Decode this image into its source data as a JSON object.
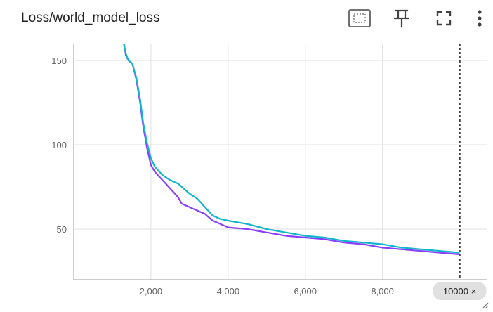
{
  "card": {
    "title": "Loss/world_model_loss"
  },
  "toolbar": {
    "icons": [
      "fit-domain-icon",
      "pin-icon",
      "fullscreen-icon",
      "more-vert-icon"
    ]
  },
  "step_chip": {
    "label": "10000 ×"
  },
  "chart_data": {
    "type": "line",
    "title": "Loss/world_model_loss",
    "xlim": [
      0,
      10700
    ],
    "ylim": [
      20,
      160
    ],
    "xticks": [
      2000,
      4000,
      6000,
      8000
    ],
    "xtick_labels": [
      "2,000",
      "4,000",
      "6,000",
      "8,000"
    ],
    "yticks": [
      50,
      100,
      150
    ],
    "ytick_labels": [
      "50",
      "100",
      "150"
    ],
    "grid": true,
    "step_marker": 10000,
    "series": [
      {
        "color": "#8a3ffc",
        "x": [
          1300,
          1350,
          1420,
          1520,
          1620,
          1720,
          1800,
          1900,
          2000,
          2100,
          2300,
          2500,
          2700,
          2800,
          3000,
          3200,
          3400,
          3600,
          3800,
          4000,
          4500,
          5000,
          5500,
          6000,
          6500,
          7000,
          7500,
          8000,
          8500,
          9000,
          9500,
          10000
        ],
        "y": [
          160,
          153,
          150,
          148,
          139,
          125,
          111,
          98,
          88,
          84,
          79,
          74,
          69,
          65,
          63,
          61,
          59,
          55,
          53,
          51,
          50,
          48,
          46,
          45,
          44,
          42,
          41,
          39,
          38,
          37,
          36,
          35
        ]
      },
      {
        "color": "#12b5cb",
        "x": [
          1300,
          1350,
          1420,
          1520,
          1620,
          1720,
          1800,
          1900,
          2000,
          2100,
          2300,
          2500,
          2700,
          2800,
          3000,
          3200,
          3400,
          3600,
          3800,
          4000,
          4500,
          5000,
          5500,
          6000,
          6500,
          7000,
          7500,
          8000,
          8500,
          9000,
          9500,
          10000
        ],
        "y": [
          160,
          154,
          150,
          148,
          140,
          127,
          113,
          101,
          92,
          87,
          82,
          79,
          77,
          75,
          71,
          68,
          63,
          58,
          56,
          55,
          53,
          50,
          48,
          46,
          45,
          43,
          42,
          41,
          39,
          38,
          37,
          36
        ]
      }
    ]
  }
}
